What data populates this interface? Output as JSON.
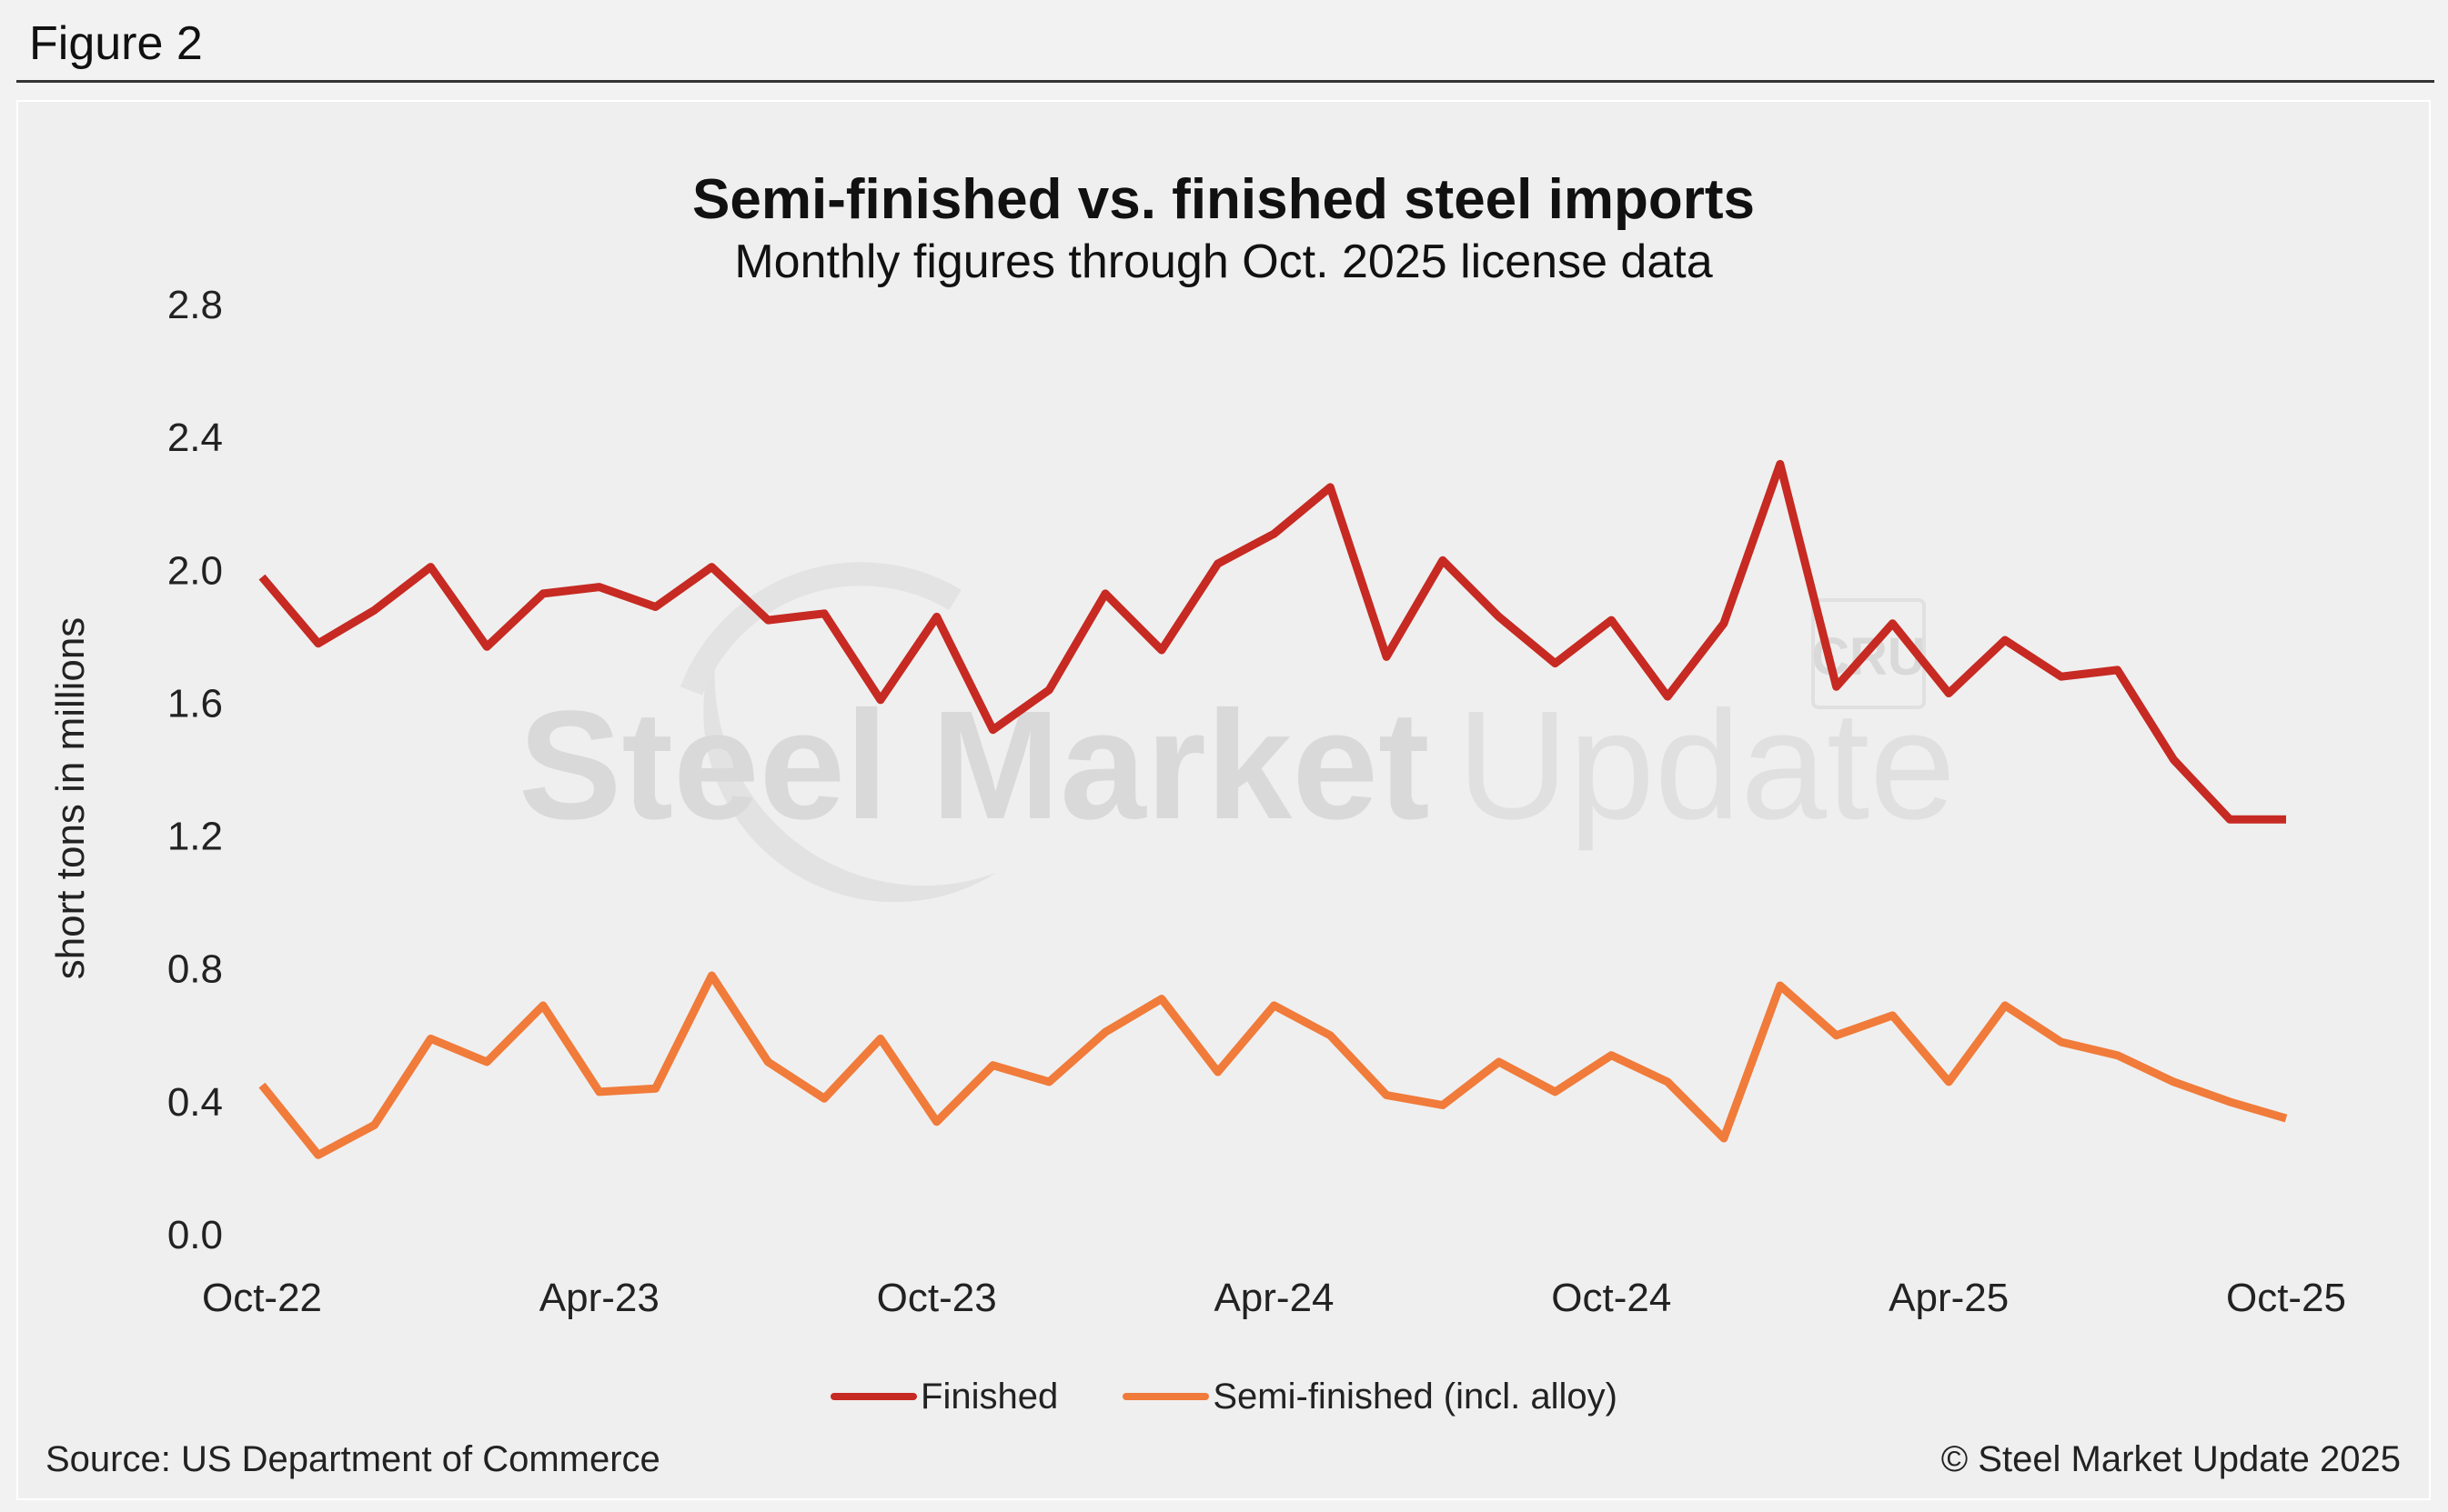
{
  "figure_label": "Figure 2",
  "source": "Source: US Department of Commerce",
  "copyright": "© Steel Market Update 2025",
  "watermark": {
    "bold": "Steel Market",
    "light": "Update",
    "badge": "CRU"
  },
  "chart_data": {
    "type": "line",
    "title": "Semi-finished vs. finished steel imports",
    "subtitle": "Monthly figures through Oct. 2025 license data",
    "ylabel": "short tons in millions",
    "xlabel": "",
    "ylim": [
      0,
      2.8
    ],
    "yticks": [
      "0.0",
      "0.4",
      "0.8",
      "1.2",
      "1.6",
      "2.0",
      "2.4",
      "2.8"
    ],
    "ytick_values": [
      0,
      0.4,
      0.8,
      1.2,
      1.6,
      2.0,
      2.4,
      2.8
    ],
    "x": [
      "Oct-22",
      "Nov-22",
      "Dec-22",
      "Jan-23",
      "Feb-23",
      "Mar-23",
      "Apr-23",
      "May-23",
      "Jun-23",
      "Jul-23",
      "Aug-23",
      "Sep-23",
      "Oct-23",
      "Nov-23",
      "Dec-23",
      "Jan-24",
      "Feb-24",
      "Mar-24",
      "Apr-24",
      "May-24",
      "Jun-24",
      "Jul-24",
      "Aug-24",
      "Sep-24",
      "Oct-24",
      "Nov-24",
      "Dec-24",
      "Jan-25",
      "Feb-25",
      "Mar-25",
      "Apr-25",
      "May-25",
      "Jun-25",
      "Jul-25",
      "Aug-25",
      "Sep-25",
      "Oct-25"
    ],
    "xtick_labels": [
      "Oct-22",
      "Apr-23",
      "Oct-23",
      "Apr-24",
      "Oct-24",
      "Apr-25",
      "Oct-25"
    ],
    "xtick_indices": [
      0,
      6,
      12,
      18,
      24,
      30,
      36
    ],
    "legend_position": "bottom-center",
    "series": [
      {
        "name": "Finished",
        "color": "#c62a22",
        "values": [
          1.98,
          1.78,
          1.88,
          2.01,
          1.77,
          1.93,
          1.95,
          1.89,
          2.01,
          1.85,
          1.87,
          1.61,
          1.86,
          1.52,
          1.64,
          1.93,
          1.76,
          2.02,
          2.11,
          2.25,
          1.74,
          2.03,
          1.86,
          1.72,
          1.85,
          1.62,
          1.84,
          2.32,
          1.65,
          1.84,
          1.63,
          1.79,
          1.68,
          1.7,
          1.43,
          1.25,
          1.25
        ]
      },
      {
        "name": "Semi-finished (incl. alloy)",
        "color": "#f07b3a",
        "values": [
          0.45,
          0.24,
          0.33,
          0.59,
          0.52,
          0.69,
          0.43,
          0.44,
          0.78,
          0.52,
          0.41,
          0.59,
          0.34,
          0.51,
          0.46,
          0.61,
          0.71,
          0.49,
          0.69,
          0.6,
          0.42,
          0.39,
          0.52,
          0.43,
          0.54,
          0.46,
          0.29,
          0.75,
          0.6,
          0.66,
          0.46,
          0.69,
          0.58,
          0.54,
          0.46,
          0.4,
          0.35
        ]
      }
    ]
  }
}
